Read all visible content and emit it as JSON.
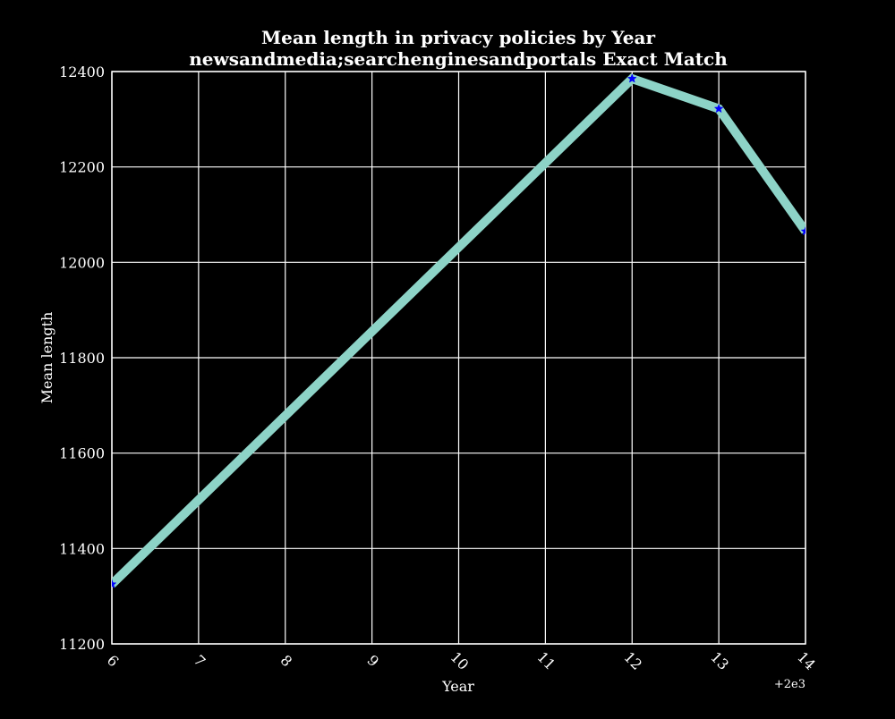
{
  "chart_data": {
    "type": "line",
    "title": "Mean length in privacy policies by Year",
    "subtitle": "newsandmedia;searchenginesandportals Exact Match",
    "xlabel": "Year",
    "ylabel": "Mean length",
    "x_offset_label": "+2e3",
    "x_ticks": [
      6,
      7,
      8,
      9,
      10,
      11,
      12,
      13,
      14
    ],
    "y_ticks": [
      11200,
      11400,
      11600,
      11800,
      12000,
      12200,
      12400
    ],
    "xlim": [
      6,
      14
    ],
    "ylim": [
      11200,
      12400
    ],
    "grid": true,
    "series": [
      {
        "x": [
          6,
          12,
          13,
          14
        ],
        "values": [
          11325,
          12385,
          12322,
          12065
        ],
        "line_color": "#8dd3c7",
        "marker_color": "#0000ff",
        "marker": "star"
      }
    ]
  }
}
